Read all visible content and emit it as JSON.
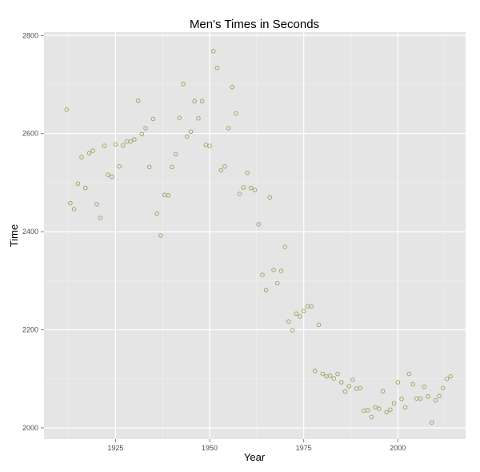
{
  "chart_data": {
    "type": "scatter",
    "title": "Men's Times in Seconds",
    "xlabel": "Year",
    "ylabel": "Time",
    "xlim": [
      1906,
      2018
    ],
    "ylim": [
      1977,
      2807
    ],
    "x_ticks": [
      1925,
      1950,
      1975,
      2000
    ],
    "y_ticks": [
      2000,
      2200,
      2400,
      2600,
      2800
    ],
    "grid": true,
    "point_color": "#9aa05a",
    "panel_color": "#e5e5e5",
    "grid_color": "#ffffff",
    "x": [
      1912,
      1913,
      1914,
      1915,
      1916,
      1917,
      1918,
      1919,
      1920,
      1921,
      1922,
      1923,
      1924,
      1925,
      1926,
      1927,
      1928,
      1929,
      1930,
      1931,
      1932,
      1933,
      1934,
      1935,
      1936,
      1937,
      1938,
      1939,
      1940,
      1941,
      1942,
      1943,
      1944,
      1945,
      1946,
      1947,
      1948,
      1949,
      1950,
      1951,
      1952,
      1953,
      1954,
      1955,
      1956,
      1957,
      1958,
      1959,
      1960,
      1961,
      1962,
      1963,
      1964,
      1965,
      1966,
      1967,
      1968,
      1969,
      1970,
      1971,
      1972,
      1973,
      1974,
      1975,
      1976,
      1977,
      1978,
      1979,
      1980,
      1981,
      1982,
      1983,
      1984,
      1985,
      1986,
      1987,
      1988,
      1989,
      1990,
      1991,
      1992,
      1993,
      1994,
      1995,
      1996,
      1997,
      1998,
      1999,
      2000,
      2001,
      2002,
      2003,
      2004,
      2005,
      2006,
      2007,
      2008,
      2009,
      2010,
      2011,
      2012,
      2013,
      2014
    ],
    "y": [
      2649,
      2458,
      2446,
      2498,
      2552,
      2489,
      2560,
      2565,
      2456,
      2428,
      2575,
      2516,
      2512,
      2578,
      2533,
      2576,
      2584,
      2584,
      2588,
      2667,
      2599,
      2611,
      2532,
      2630,
      2437,
      2392,
      2475,
      2474,
      2532,
      2558,
      2632,
      2701,
      2594,
      2604,
      2666,
      2631,
      2666,
      2577,
      2575,
      2768,
      2734,
      2525,
      2533,
      2611,
      2695,
      2641,
      2477,
      2490,
      2520,
      2489,
      2485,
      2415,
      2312,
      2281,
      2470,
      2322,
      2295,
      2320,
      2369,
      2217,
      2199,
      2233,
      2227,
      2238,
      2248,
      2248,
      2116,
      2210,
      2110,
      2105,
      2106,
      2101,
      2110,
      2093,
      2074,
      2085,
      2098,
      2080,
      2081,
      2035,
      2036,
      2022,
      2042,
      2039,
      2075,
      2032,
      2037,
      2050,
      2093,
      2059,
      2042,
      2110,
      2089,
      2060,
      2060,
      2084,
      2064,
      2011,
      2056,
      2065,
      2081,
      2100,
      2105
    ]
  }
}
